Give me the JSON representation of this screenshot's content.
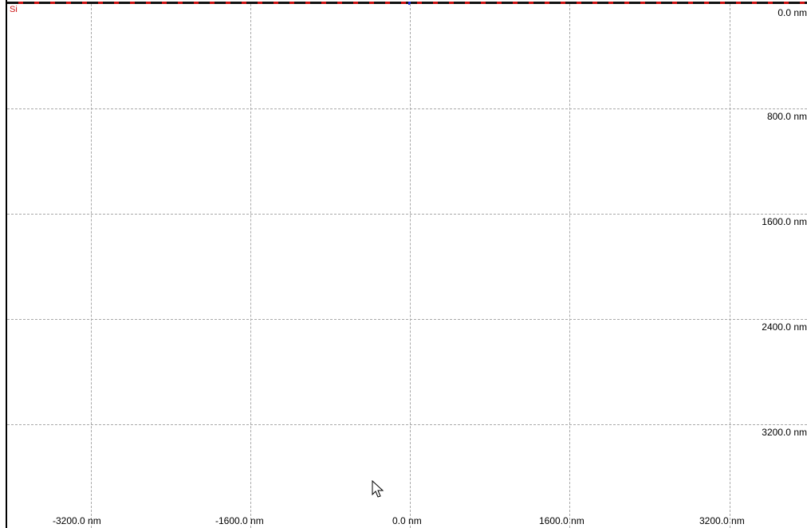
{
  "material_label": "Si",
  "colors": {
    "background": "#ffffff",
    "grid": "#a9a9a9",
    "material": "#cc1111",
    "marker": "#1b2fd6"
  },
  "y_axis": {
    "unit": "nm",
    "ticks": [
      "0.0 nm",
      "800.0 nm",
      "1600.0 nm",
      "2400.0 nm",
      "3200.0 nm"
    ],
    "values": [
      0,
      800,
      1600,
      2400,
      3200
    ]
  },
  "x_axis": {
    "unit": "nm",
    "ticks": [
      "-3200.0 nm",
      "-1600.0 nm",
      "0.0 nm",
      "1600.0 nm",
      "3200.0 nm"
    ],
    "values": [
      -3200,
      -1600,
      0,
      1600,
      3200
    ]
  },
  "cursor_icon": "arrow-pointer-icon"
}
